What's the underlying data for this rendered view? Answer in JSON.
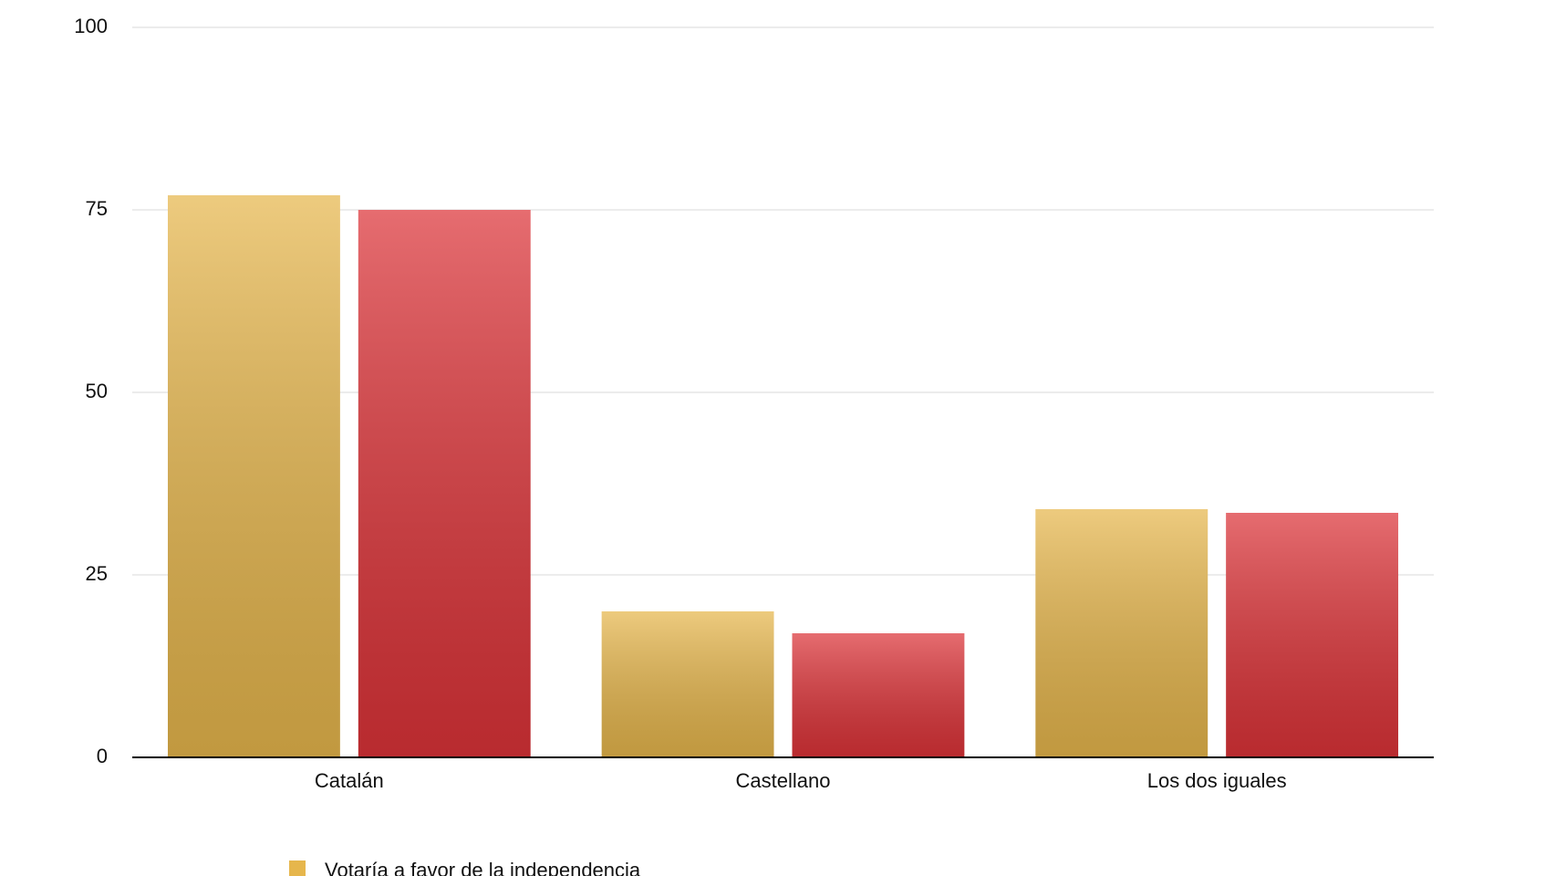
{
  "chart_data": {
    "type": "bar",
    "categories": [
      "Catalán",
      "Castellano",
      "Los dos iguales"
    ],
    "series": [
      {
        "name": "Votaría a favor de la independencia",
        "color": "#e6b64c",
        "values": [
          77,
          20,
          34
        ]
      },
      {
        "color": "#dc3338",
        "values": [
          75,
          17,
          33.5
        ]
      }
    ],
    "ylim": [
      0,
      100
    ],
    "yticks": [
      0,
      25,
      50,
      75,
      100
    ],
    "grid": true
  }
}
